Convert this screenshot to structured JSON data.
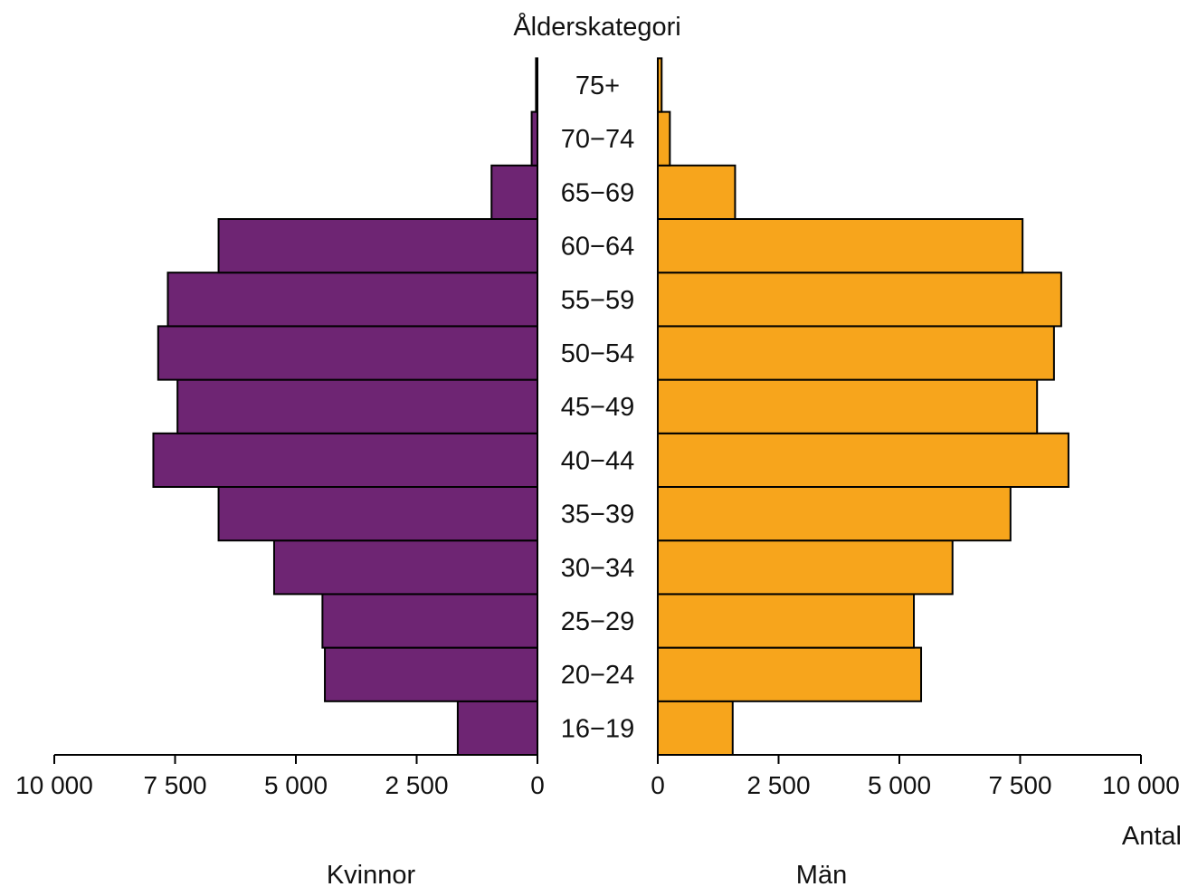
{
  "chart_data": {
    "type": "bar",
    "orientation": "horizontal",
    "subtype": "population-pyramid",
    "title": "Ålderskategori",
    "xlabel": "Antal",
    "categories": [
      "16−19",
      "20−24",
      "25−29",
      "30−34",
      "35−39",
      "40−44",
      "45−49",
      "50−54",
      "55−59",
      "60−64",
      "65−69",
      "70−74",
      "75+"
    ],
    "series": [
      {
        "name": "Kvinnor",
        "color": "#6e2573",
        "side": "left",
        "values": [
          1650,
          4400,
          4450,
          5450,
          6600,
          7950,
          7450,
          7850,
          7650,
          6600,
          950,
          120,
          30
        ]
      },
      {
        "name": "Män",
        "color": "#f7a51c",
        "side": "right",
        "values": [
          1550,
          5450,
          5300,
          6100,
          7300,
          8500,
          7850,
          8200,
          8350,
          7550,
          1600,
          250,
          80
        ]
      }
    ],
    "xlim": [
      0,
      10000
    ],
    "left_ticks": [
      "10 000",
      "7 500",
      "5 000",
      "2 500",
      "0"
    ],
    "right_ticks": [
      "0",
      "2 500",
      "5 000",
      "7 500",
      "10 000"
    ],
    "tick_values": [
      0,
      2500,
      5000,
      7500,
      10000
    ],
    "grid": false,
    "legend": "none"
  }
}
